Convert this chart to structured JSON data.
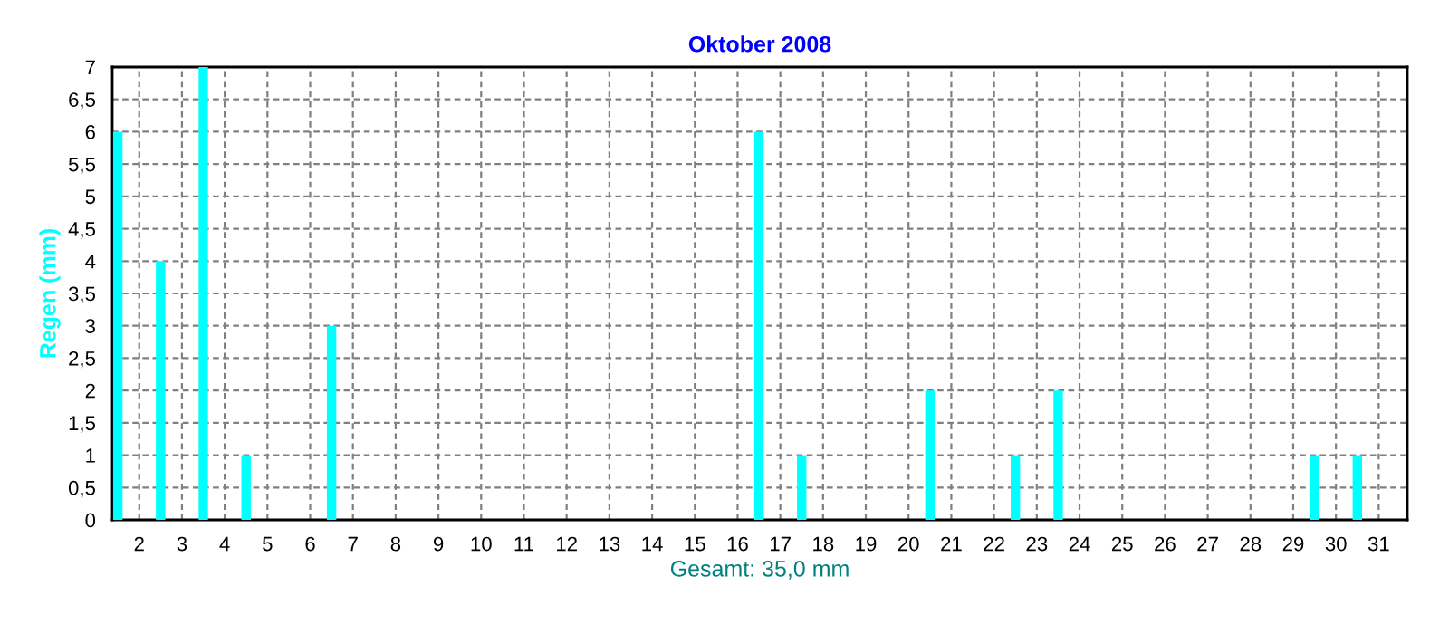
{
  "chart_data": {
    "type": "bar",
    "title": "Oktober 2008",
    "ylabel": "Regen (mm)",
    "xlabel": "Gesamt: 35,0 mm",
    "x": [
      1.5,
      2.5,
      3.5,
      4.5,
      5.5,
      6.5,
      7.5,
      8.5,
      9.5,
      10.5,
      11.5,
      12.5,
      13.5,
      14.5,
      15.5,
      16.5,
      17.5,
      18.5,
      19.5,
      20.5,
      21.5,
      22.5,
      23.5,
      24.5,
      25.5,
      26.5,
      27.5,
      28.5,
      29.5,
      30.5,
      31.5
    ],
    "values": [
      6,
      4,
      7,
      1,
      0,
      3,
      0,
      0,
      0,
      0,
      0,
      0,
      0,
      0,
      0,
      6,
      1,
      0,
      0,
      2,
      0,
      1,
      2,
      0,
      0,
      0,
      0,
      0,
      1,
      1,
      0
    ],
    "color": "#00ffff",
    "xlim": [
      1.37,
      31.67
    ],
    "xticks": [
      2,
      3,
      4,
      5,
      6,
      7,
      8,
      9,
      10,
      11,
      12,
      13,
      14,
      15,
      16,
      17,
      18,
      19,
      20,
      21,
      22,
      23,
      24,
      25,
      26,
      27,
      28,
      29,
      30,
      31
    ],
    "ylim": [
      0,
      7
    ],
    "yticks": [
      0,
      {
        "value": 0.5,
        "label": "0,5"
      },
      1,
      {
        "value": 1.5,
        "label": "1,5"
      },
      2,
      {
        "value": 2.5,
        "label": "2,5"
      },
      3,
      {
        "value": 3.5,
        "label": "3,5"
      },
      4,
      {
        "value": 4.5,
        "label": "4,5"
      },
      5,
      {
        "value": 5.5,
        "label": "5,5"
      },
      6,
      {
        "value": 6.5,
        "label": "6,5"
      },
      7
    ],
    "grid": true,
    "legend": false
  }
}
